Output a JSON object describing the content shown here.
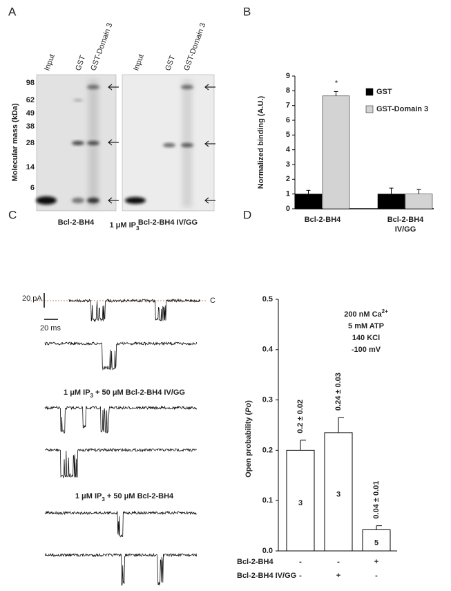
{
  "panel_labels": [
    "A",
    "B",
    "C",
    "D"
  ],
  "panel_a": {
    "lanes": [
      "Input",
      "GST",
      "GST-Domain 3"
    ],
    "y_title": "Molecular mass (kDa)",
    "markers": [
      98,
      62,
      49,
      38,
      28,
      14,
      6
    ],
    "blots": [
      "Bcl-2-BH4",
      "Bcl-2-BH4 IV/GG"
    ]
  },
  "panel_c": {
    "conditions": [
      [
        "1 μM IP",
        "3"
      ],
      [
        "1 μM IP",
        "3",
        " + 50 μM  Bcl-2-BH4 IV/GG"
      ],
      [
        "1 μM IP",
        "3",
        " + 50 μM Bcl-2-BH4"
      ]
    ],
    "current_scale": "20 pA",
    "time_scale": "20 ms",
    "closed_marker": "C"
  },
  "chart_data": [
    {
      "type": "bar",
      "y_label": "Normalized binding (A.U.)",
      "categories": [
        "Bcl-2-BH4",
        "Bcl-2-BH4 IV/GG"
      ],
      "series": [
        {
          "name": "GST",
          "color": "#000000",
          "values": [
            1,
            1
          ],
          "errors": [
            0.25,
            0.4
          ]
        },
        {
          "name": "GST-Domain 3",
          "color": "#d3d3d3",
          "values": [
            7.65,
            1.0
          ],
          "errors": [
            0.3,
            0.3
          ]
        }
      ],
      "ylim": [
        0,
        9
      ],
      "yticks": [
        0,
        1,
        2,
        3,
        4,
        5,
        6,
        7,
        8,
        9
      ],
      "annotations": [
        "*"
      ],
      "legend": "upper right"
    },
    {
      "type": "bar",
      "y_label": [
        "Open probability (",
        "Po",
        ")"
      ],
      "values": [
        0.2,
        0.235,
        0.042
      ],
      "errors": [
        0.02,
        0.03,
        0.008
      ],
      "value_labels": [
        "0.2 ± 0.02",
        "0.24 ± 0.03",
        "0.04 ± 0.01"
      ],
      "n": [
        3,
        3,
        5
      ],
      "color": "#ffffff",
      "ylim": [
        0,
        0.5
      ],
      "yticks": [
        {
          "value": 0,
          "label": "0.0"
        },
        0.1,
        0.2,
        0.3,
        0.4,
        0.5
      ],
      "annotation": [
        [
          "200 nM Ca",
          "2+"
        ],
        [
          "5 mM ATP"
        ],
        [
          "140 KCl"
        ],
        [
          "-100 mV"
        ]
      ],
      "table": {
        "rows": [
          {
            "label": "Bcl-2-BH4",
            "cells": [
              "-",
              "-",
              "+"
            ]
          },
          {
            "label": "Bcl-2-BH4 IV/GG",
            "cells": [
              "-",
              "+",
              "-"
            ]
          }
        ]
      }
    }
  ]
}
